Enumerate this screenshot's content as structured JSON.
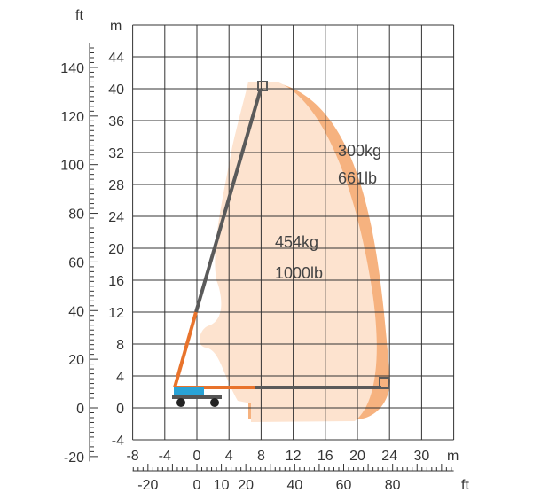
{
  "units": {
    "m": "m",
    "ft": "ft"
  },
  "m_axis": {
    "range": [
      -4,
      44
    ],
    "ticks": [
      "-4",
      "0",
      "4",
      "8",
      "12",
      "16",
      "20",
      "24",
      "28",
      "32",
      "36",
      "40",
      "44"
    ]
  },
  "x_axis_m": {
    "range": [
      -8,
      32
    ],
    "ticks": [
      "-8",
      "-4",
      "0",
      "4",
      "8",
      "12",
      "16",
      "20",
      "24",
      "30"
    ]
  },
  "ft_axis_left": {
    "ticks": [
      "-20",
      "0",
      "20",
      "40",
      "60",
      "80",
      "100",
      "120",
      "140"
    ]
  },
  "ft_axis_bottom": {
    "ticks": [
      "-20",
      "0",
      "10",
      "20",
      "40",
      "60",
      "80"
    ]
  },
  "zones": [
    {
      "weight_label": "454kg",
      "weight_label_lb": "1000lb",
      "color": "#fde3cf"
    },
    {
      "weight_label": "300kg",
      "weight_label_lb": "661lb",
      "color": "#f6b27f"
    }
  ],
  "machine_colors": {
    "boom_orange": "#e8732c",
    "boom_gray": "#5a5a5a",
    "chassis": "#29a3d6",
    "wheels": "#222222"
  }
}
